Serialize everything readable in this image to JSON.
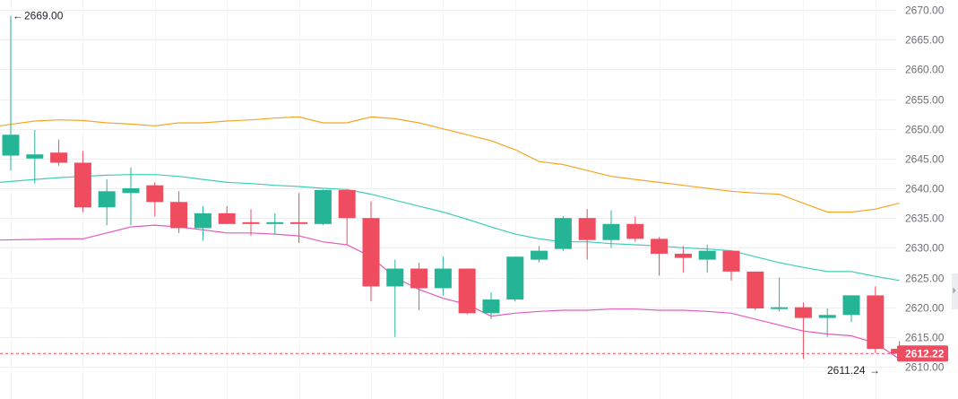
{
  "chart_data": {
    "type": "candlestick",
    "title": "",
    "xlabel": "",
    "ylabel": "",
    "ylim": [
      2608.5,
      2671.5
    ],
    "y_ticks": [
      2670,
      2665,
      2660,
      2655,
      2650,
      2645,
      2640,
      2635,
      2630,
      2625,
      2620,
      2615,
      2610
    ],
    "y_tick_labels": [
      "2670.00",
      "2665.00",
      "2660.00",
      "2655.00",
      "2650.00",
      "2645.00",
      "2640.00",
      "2635.00",
      "2630.00",
      "2625.00",
      "2620.00",
      "2615.00",
      "2610.00"
    ],
    "grid": true,
    "colors": {
      "up": "#26b496",
      "down": "#ef4d5f",
      "upper_band": "#f5a623",
      "middle_band": "#3ecfb4",
      "lower_band": "#e45bbd",
      "grid": "#eeeeee",
      "tick_text": "#6b6f76",
      "current_price_line": "#ef4d5f"
    },
    "candles": [
      {
        "open": 2645.5,
        "high": 2669.0,
        "low": 2643.0,
        "close": 2649.0
      },
      {
        "open": 2645.0,
        "high": 2649.8,
        "low": 2640.8,
        "close": 2645.7
      },
      {
        "open": 2646.0,
        "high": 2648.2,
        "low": 2643.8,
        "close": 2644.3
      },
      {
        "open": 2644.3,
        "high": 2646.3,
        "low": 2636.0,
        "close": 2636.8
      },
      {
        "open": 2636.8,
        "high": 2641.5,
        "low": 2633.8,
        "close": 2639.5
      },
      {
        "open": 2639.2,
        "high": 2643.5,
        "low": 2633.8,
        "close": 2640.0
      },
      {
        "open": 2640.5,
        "high": 2641.0,
        "low": 2635.3,
        "close": 2637.7
      },
      {
        "open": 2637.7,
        "high": 2639.5,
        "low": 2632.5,
        "close": 2633.3
      },
      {
        "open": 2633.3,
        "high": 2637.0,
        "low": 2631.2,
        "close": 2635.8
      },
      {
        "open": 2635.8,
        "high": 2637.0,
        "low": 2634.3,
        "close": 2634.0
      },
      {
        "open": 2634.3,
        "high": 2636.5,
        "low": 2632.0,
        "close": 2634.0
      },
      {
        "open": 2634.0,
        "high": 2635.8,
        "low": 2632.3,
        "close": 2634.3
      },
      {
        "open": 2634.3,
        "high": 2639.2,
        "low": 2630.8,
        "close": 2634.0
      },
      {
        "open": 2634.0,
        "high": 2639.8,
        "low": 2633.8,
        "close": 2639.7
      },
      {
        "open": 2639.7,
        "high": 2639.7,
        "low": 2630.5,
        "close": 2635.0
      },
      {
        "open": 2635.0,
        "high": 2637.8,
        "low": 2621.0,
        "close": 2623.5
      },
      {
        "open": 2623.5,
        "high": 2628.0,
        "low": 2615.0,
        "close": 2626.5
      },
      {
        "open": 2626.5,
        "high": 2627.5,
        "low": 2619.5,
        "close": 2623.2
      },
      {
        "open": 2623.2,
        "high": 2628.5,
        "low": 2622.0,
        "close": 2626.5
      },
      {
        "open": 2626.5,
        "high": 2626.5,
        "low": 2618.8,
        "close": 2619.0
      },
      {
        "open": 2619.0,
        "high": 2622.5,
        "low": 2618.0,
        "close": 2621.3
      },
      {
        "open": 2621.3,
        "high": 2628.5,
        "low": 2621.0,
        "close": 2628.5
      },
      {
        "open": 2628.0,
        "high": 2630.3,
        "low": 2627.5,
        "close": 2629.5
      },
      {
        "open": 2629.8,
        "high": 2635.3,
        "low": 2629.5,
        "close": 2635.0
      },
      {
        "open": 2635.0,
        "high": 2636.5,
        "low": 2628.0,
        "close": 2631.3
      },
      {
        "open": 2631.3,
        "high": 2636.3,
        "low": 2630.0,
        "close": 2634.0
      },
      {
        "open": 2634.0,
        "high": 2635.3,
        "low": 2631.0,
        "close": 2631.5
      },
      {
        "open": 2631.5,
        "high": 2631.8,
        "low": 2625.3,
        "close": 2629.0
      },
      {
        "open": 2629.0,
        "high": 2630.3,
        "low": 2625.8,
        "close": 2628.3
      },
      {
        "open": 2628.0,
        "high": 2630.5,
        "low": 2625.8,
        "close": 2629.5
      },
      {
        "open": 2629.5,
        "high": 2629.5,
        "low": 2624.5,
        "close": 2626.0
      },
      {
        "open": 2626.0,
        "high": 2626.0,
        "low": 2619.5,
        "close": 2619.8
      },
      {
        "open": 2619.8,
        "high": 2625.0,
        "low": 2619.3,
        "close": 2620.0
      },
      {
        "open": 2620.0,
        "high": 2620.8,
        "low": 2611.3,
        "close": 2618.2
      },
      {
        "open": 2618.2,
        "high": 2619.8,
        "low": 2615.0,
        "close": 2618.7
      },
      {
        "open": 2618.7,
        "high": 2622.0,
        "low": 2617.5,
        "close": 2622.0
      },
      {
        "open": 2622.0,
        "high": 2623.5,
        "low": 2612.3,
        "close": 2613.0
      },
      {
        "open": 2613.0,
        "high": 2614.3,
        "low": 2611.3,
        "close": 2612.2
      }
    ],
    "bollinger_upper": [
      2650.5,
      2651.3,
      2651.5,
      2651.4,
      2651.0,
      2650.8,
      2650.5,
      2651.0,
      2651.0,
      2651.3,
      2651.5,
      2651.8,
      2652.0,
      2651.0,
      2651.0,
      2652.0,
      2651.7,
      2651.0,
      2650.0,
      2649.0,
      2648.0,
      2646.5,
      2644.5,
      2644.0,
      2643.0,
      2642.0,
      2641.5,
      2641.0,
      2640.5,
      2640.0,
      2639.5,
      2639.2,
      2639.0,
      2637.5,
      2636.0,
      2636.0,
      2636.5,
      2637.5
    ],
    "bollinger_middle": [
      2641.0,
      2641.5,
      2641.8,
      2642.0,
      2642.2,
      2642.3,
      2642.3,
      2642.0,
      2641.5,
      2641.0,
      2640.8,
      2640.5,
      2640.3,
      2640.0,
      2639.8,
      2639.0,
      2638.0,
      2637.0,
      2636.0,
      2634.8,
      2633.5,
      2632.3,
      2631.5,
      2631.0,
      2631.0,
      2630.7,
      2630.5,
      2630.3,
      2630.0,
      2629.8,
      2629.5,
      2628.5,
      2627.5,
      2626.7,
      2626.0,
      2626.0,
      2625.2,
      2624.5
    ],
    "bollinger_lower": [
      2631.3,
      2631.4,
      2631.5,
      2631.5,
      2632.5,
      2633.5,
      2633.8,
      2633.5,
      2633.0,
      2632.5,
      2632.5,
      2632.3,
      2632.0,
      2631.0,
      2630.5,
      2628.5,
      2625.0,
      2623.0,
      2621.5,
      2620.5,
      2618.5,
      2619.0,
      2619.3,
      2619.5,
      2619.5,
      2619.7,
      2619.7,
      2619.5,
      2619.5,
      2619.3,
      2619.0,
      2618.0,
      2617.0,
      2616.0,
      2615.5,
      2615.2,
      2614.0,
      2611.3
    ],
    "current_price": 2612.22,
    "current_price_label": "2612.22",
    "max_label": "2669.00",
    "max_value": 2669.0,
    "max_arrow": "←",
    "min_label": "2611.24",
    "min_value": 2611.24,
    "min_arrow": "→"
  }
}
